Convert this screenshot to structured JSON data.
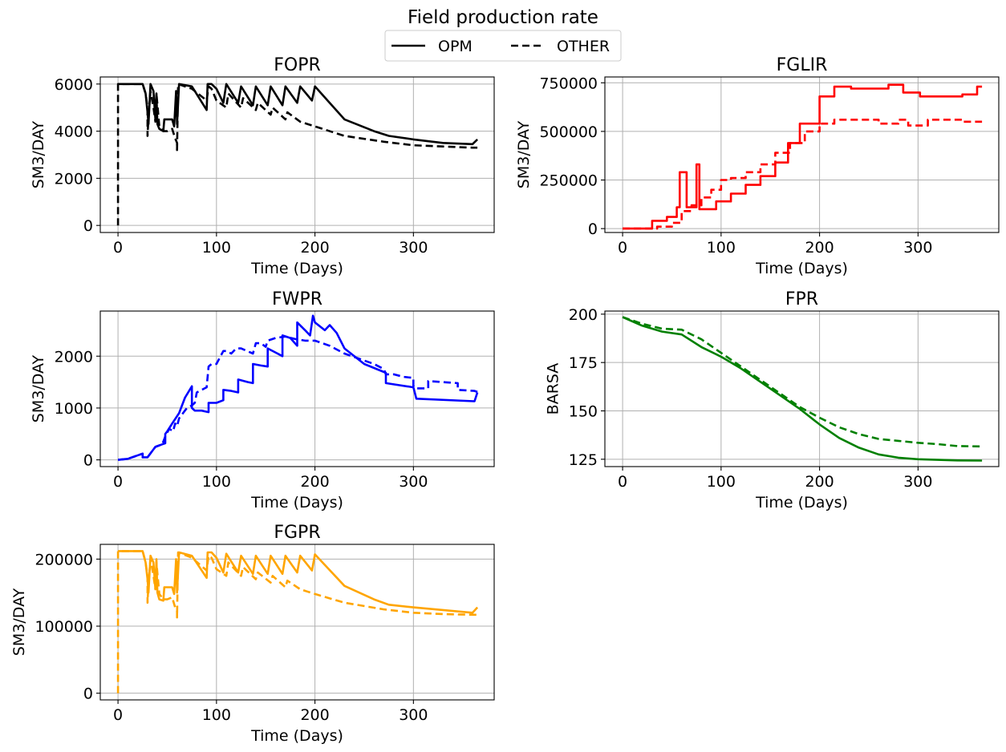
{
  "figure": {
    "title": "Field production rate",
    "legend": [
      {
        "label": "OPM",
        "style": "solid"
      },
      {
        "label": "OTHER",
        "style": "dashed"
      }
    ]
  },
  "chart_data": [
    {
      "type": "line",
      "title": "FOPR",
      "xlabel": "Time (Days)",
      "ylabel": "SM3/DAY",
      "xlim": [
        -18,
        382
      ],
      "ylim": [
        -300,
        6300
      ],
      "xticks": [
        0,
        100,
        200,
        300
      ],
      "yticks": [
        0,
        2000,
        4000,
        6000
      ],
      "color": "#000000",
      "grid": true,
      "series": [
        {
          "name": "OPM",
          "style": "solid",
          "x": [
            0,
            25,
            28,
            30,
            31,
            33,
            36,
            38,
            39,
            40,
            42,
            46,
            47,
            55,
            57,
            59,
            60,
            62,
            75,
            90,
            91,
            95,
            100,
            107,
            110,
            122,
            125,
            137,
            140,
            152,
            155,
            167,
            170,
            182,
            185,
            197,
            200,
            230,
            260,
            275,
            300,
            330,
            360,
            365
          ],
          "y": [
            6000,
            6000,
            5600,
            4800,
            4300,
            6000,
            5700,
            4500,
            5600,
            4300,
            4100,
            4000,
            4500,
            4500,
            4200,
            5700,
            4300,
            6000,
            5900,
            4900,
            6000,
            6000,
            5800,
            5200,
            6000,
            5200,
            5900,
            5100,
            5900,
            5100,
            5900,
            5100,
            5900,
            5200,
            5900,
            5300,
            5900,
            4500,
            4000,
            3800,
            3650,
            3500,
            3450,
            3650
          ]
        },
        {
          "name": "OTHER",
          "style": "dashed",
          "x": [
            0,
            0,
            0.5,
            25,
            28,
            30,
            30,
            31,
            33,
            36,
            38,
            39,
            42,
            46,
            50,
            55,
            58,
            60,
            60,
            61,
            75,
            90,
            92,
            95,
            100,
            110,
            112,
            125,
            127,
            140,
            142,
            155,
            157,
            170,
            172,
            185,
            200,
            230,
            270,
            300,
            330,
            360,
            365
          ],
          "y": [
            0,
            6000,
            6000,
            6000,
            5600,
            5000,
            3800,
            4600,
            5700,
            5000,
            4400,
            5600,
            4200,
            4000,
            4000,
            4100,
            3700,
            3500,
            3200,
            6000,
            5800,
            5300,
            5900,
            5800,
            5300,
            5000,
            5600,
            5000,
            5400,
            4900,
            5200,
            4700,
            5000,
            4500,
            4800,
            4400,
            4200,
            3800,
            3550,
            3400,
            3350,
            3300,
            3300
          ]
        }
      ]
    },
    {
      "type": "line",
      "title": "FGLIR",
      "xlabel": "Time (Days)",
      "ylabel": "SM3/DAY",
      "xlim": [
        -18,
        382
      ],
      "ylim": [
        -20000,
        780000
      ],
      "xticks": [
        0,
        100,
        200,
        300
      ],
      "yticks": [
        0,
        250000,
        500000,
        750000
      ],
      "color": "#ff0000",
      "grid": true,
      "series": [
        {
          "name": "OPM",
          "style": "solid",
          "x": [
            0,
            30,
            30,
            45,
            45,
            55,
            55,
            58,
            58,
            65,
            65,
            75,
            75,
            78,
            78,
            95,
            95,
            110,
            110,
            125,
            125,
            140,
            140,
            155,
            155,
            168,
            168,
            180,
            180,
            200,
            200,
            215,
            215,
            232,
            232,
            270,
            270,
            285,
            285,
            302,
            302,
            345,
            345,
            360,
            360,
            365
          ],
          "y": [
            0,
            0,
            40000,
            40000,
            60000,
            60000,
            110000,
            110000,
            290000,
            290000,
            110000,
            110000,
            330000,
            330000,
            100000,
            100000,
            140000,
            140000,
            180000,
            180000,
            225000,
            225000,
            270000,
            270000,
            340000,
            340000,
            440000,
            440000,
            540000,
            540000,
            680000,
            680000,
            730000,
            730000,
            720000,
            720000,
            740000,
            740000,
            700000,
            700000,
            680000,
            680000,
            690000,
            690000,
            730000,
            730000
          ]
        },
        {
          "name": "OTHER",
          "style": "dashed",
          "x": [
            0,
            35,
            35,
            50,
            50,
            60,
            60,
            70,
            70,
            80,
            80,
            90,
            90,
            100,
            100,
            110,
            110,
            125,
            125,
            140,
            140,
            155,
            155,
            170,
            170,
            185,
            185,
            200,
            200,
            215,
            215,
            260,
            260,
            280,
            280,
            290,
            290,
            310,
            310,
            345,
            345,
            365
          ],
          "y": [
            0,
            0,
            10000,
            10000,
            30000,
            30000,
            90000,
            90000,
            120000,
            120000,
            160000,
            160000,
            200000,
            200000,
            250000,
            250000,
            260000,
            260000,
            290000,
            290000,
            330000,
            330000,
            390000,
            390000,
            440000,
            440000,
            500000,
            500000,
            540000,
            540000,
            560000,
            560000,
            540000,
            540000,
            560000,
            560000,
            530000,
            530000,
            560000,
            560000,
            550000,
            550000
          ]
        }
      ]
    },
    {
      "type": "line",
      "title": "FWPR",
      "xlabel": "Time (Days)",
      "ylabel": "SM3/DAY",
      "xlim": [
        -18,
        382
      ],
      "ylim": [
        -130,
        2870
      ],
      "xticks": [
        0,
        100,
        200,
        300
      ],
      "yticks": [
        0,
        1000,
        2000
      ],
      "color": "#0000ff",
      "grid": true,
      "series": [
        {
          "name": "OPM",
          "style": "solid",
          "x": [
            0,
            10,
            25,
            25,
            30,
            38,
            45,
            48,
            48,
            50,
            55,
            62,
            68,
            75,
            75,
            78,
            85,
            92,
            92,
            100,
            107,
            107,
            115,
            122,
            122,
            132,
            137,
            137,
            145,
            152,
            152,
            162,
            167,
            167,
            175,
            182,
            182,
            190,
            195,
            198,
            200,
            210,
            215,
            222,
            230,
            250,
            272,
            272,
            300,
            303,
            362,
            365
          ],
          "y": [
            0,
            20,
            120,
            50,
            50,
            250,
            300,
            320,
            500,
            550,
            700,
            900,
            1200,
            1420,
            1000,
            950,
            950,
            920,
            1100,
            1100,
            1150,
            1350,
            1330,
            1300,
            1550,
            1500,
            1480,
            1850,
            1820,
            1800,
            2150,
            2050,
            2000,
            2400,
            2350,
            2200,
            2650,
            2500,
            2400,
            2780,
            2650,
            2500,
            2600,
            2450,
            2150,
            1850,
            1680,
            1480,
            1400,
            1180,
            1130,
            1300
          ]
        },
        {
          "name": "OTHER",
          "style": "dashed",
          "x": [
            0,
            10,
            25,
            25,
            30,
            38,
            45,
            48,
            52,
            56,
            58,
            60,
            62,
            66,
            70,
            75,
            78,
            80,
            85,
            90,
            92,
            95,
            100,
            107,
            110,
            115,
            120,
            125,
            137,
            140,
            145,
            150,
            152,
            160,
            170,
            180,
            190,
            200,
            215,
            230,
            245,
            260,
            270,
            272,
            280,
            290,
            300,
            300,
            302,
            315,
            315,
            330,
            345,
            345,
            362,
            365
          ],
          "y": [
            0,
            20,
            120,
            50,
            50,
            250,
            300,
            450,
            600,
            550,
            700,
            650,
            800,
            900,
            1000,
            1050,
            1100,
            1300,
            1350,
            1400,
            1800,
            1850,
            1850,
            2100,
            2100,
            2050,
            2150,
            2150,
            2050,
            2250,
            2250,
            2180,
            2300,
            2350,
            2380,
            2330,
            2300,
            2300,
            2200,
            2050,
            1950,
            1850,
            1750,
            1650,
            1650,
            1600,
            1580,
            1430,
            1380,
            1380,
            1520,
            1500,
            1480,
            1350,
            1330,
            1310
          ]
        }
      ]
    },
    {
      "type": "line",
      "title": "FPR",
      "xlabel": "Time (Days)",
      "ylabel": "BARSA",
      "xlim": [
        -18,
        382
      ],
      "ylim": [
        121.2,
        201.6
      ],
      "xticks": [
        0,
        100,
        200,
        300
      ],
      "yticks": [
        125,
        150,
        175,
        200
      ],
      "color": "#008000",
      "grid": true,
      "series": [
        {
          "name": "OPM",
          "style": "solid",
          "x": [
            0,
            20,
            40,
            60,
            80,
            100,
            120,
            140,
            160,
            180,
            200,
            220,
            240,
            260,
            280,
            300,
            320,
            340,
            365
          ],
          "y": [
            198.5,
            194,
            191,
            189.5,
            183,
            178,
            172,
            165,
            158,
            151,
            143,
            136,
            131,
            127.5,
            125.8,
            125,
            124.7,
            124.4,
            124.3
          ]
        },
        {
          "name": "OTHER",
          "style": "dashed",
          "x": [
            0,
            20,
            40,
            60,
            80,
            100,
            120,
            140,
            160,
            180,
            200,
            220,
            240,
            260,
            280,
            300,
            320,
            340,
            365
          ],
          "y": [
            198.5,
            195,
            192.5,
            192,
            187,
            180,
            173,
            166,
            159,
            152,
            146.5,
            141.5,
            138,
            135.5,
            134.5,
            133.5,
            132.8,
            131.8,
            131.6
          ]
        }
      ]
    },
    {
      "type": "line",
      "title": "FGPR",
      "xlabel": "Time (Days)",
      "ylabel": "SM3/DAY",
      "xlim": [
        -18,
        382
      ],
      "ylim": [
        -10000,
        222000
      ],
      "xticks": [
        0,
        100,
        200,
        300
      ],
      "yticks": [
        0,
        100000,
        200000
      ],
      "color": "#ffa500",
      "grid": true,
      "series": [
        {
          "name": "OPM",
          "style": "solid",
          "x": [
            0,
            25,
            28,
            30,
            31,
            33,
            36,
            38,
            39,
            40,
            42,
            46,
            47,
            55,
            57,
            59,
            60,
            62,
            75,
            90,
            91,
            95,
            100,
            107,
            110,
            122,
            125,
            137,
            140,
            152,
            155,
            167,
            170,
            182,
            185,
            197,
            200,
            230,
            260,
            275,
            300,
            330,
            360,
            365
          ],
          "y": [
            212000,
            212000,
            195000,
            170000,
            150000,
            205000,
            195000,
            155000,
            200000,
            150000,
            140000,
            138000,
            158000,
            158000,
            148000,
            200000,
            150000,
            210000,
            205000,
            172000,
            210000,
            210000,
            202000,
            180000,
            208000,
            180000,
            205000,
            178000,
            205000,
            178000,
            205000,
            178000,
            205000,
            180000,
            205000,
            183000,
            207000,
            160000,
            140000,
            132000,
            128000,
            124000,
            120000,
            128000
          ]
        },
        {
          "name": "OTHER",
          "style": "dashed",
          "x": [
            0,
            0,
            0.5,
            25,
            28,
            30,
            30,
            31,
            33,
            36,
            38,
            39,
            42,
            46,
            50,
            55,
            58,
            60,
            60,
            61,
            75,
            90,
            92,
            95,
            100,
            110,
            112,
            125,
            127,
            140,
            142,
            155,
            157,
            170,
            172,
            185,
            200,
            230,
            270,
            300,
            330,
            360,
            365
          ],
          "y": [
            0,
            212000,
            212000,
            212000,
            195000,
            175000,
            135000,
            165000,
            200000,
            175000,
            155000,
            195000,
            148000,
            140000,
            140000,
            143000,
            128000,
            122000,
            113000,
            210000,
            202000,
            183000,
            205000,
            202000,
            185000,
            175000,
            195000,
            175000,
            188000,
            170000,
            180000,
            165000,
            175000,
            158000,
            168000,
            155000,
            148000,
            135000,
            125000,
            120000,
            118000,
            117000,
            117000
          ]
        }
      ]
    }
  ]
}
